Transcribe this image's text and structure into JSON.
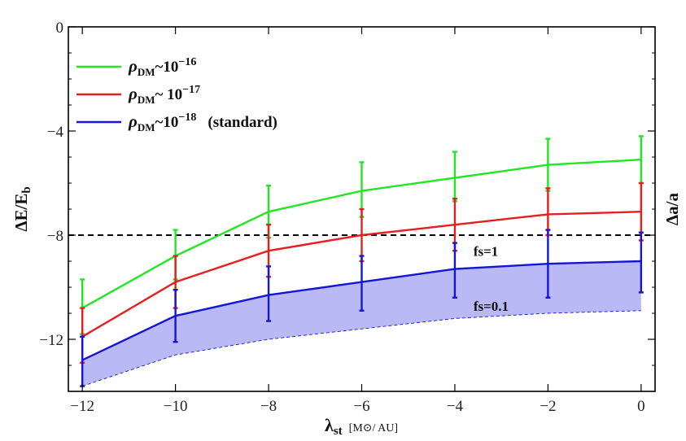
{
  "chart_data": {
    "type": "line",
    "xlabel": "λst [M⊙/ AU]",
    "xlabel_main": "λ",
    "xlabel_sub": "st",
    "xlabel_units": "[M⊙/ AU]",
    "ylabel": "ΔE/Eb",
    "ylabel_main": "ΔE/E",
    "ylabel_sub": "b",
    "y2label": "Δa/a",
    "xlim": [
      -12.3,
      0.3
    ],
    "ylim": [
      -14,
      0
    ],
    "x_ticks": [
      -12,
      -10,
      -8,
      -6,
      -4,
      -2,
      0
    ],
    "x_tick_labels": [
      "−12",
      "−10",
      "−8",
      "−6",
      "−4",
      "−2",
      "0"
    ],
    "y_ticks": [
      0,
      -4,
      -8,
      -12
    ],
    "y_tick_labels": [
      "0",
      "−4",
      "−8",
      "−12"
    ],
    "x": [
      -12,
      -10,
      -8,
      -6,
      -4,
      -2,
      0
    ],
    "series": [
      {
        "name": "ρDM~10−16",
        "legend_main": "ρ",
        "legend_sub": "DM",
        "legend_rest": "~10",
        "legend_sup": "−16",
        "legend_suffix": "",
        "color": "#22e622",
        "values": [
          -10.8,
          -8.8,
          -7.1,
          -6.3,
          -5.8,
          -5.3,
          -5.1
        ],
        "err_low": [
          -11.8,
          -9.7,
          -8.1,
          -7.3,
          -6.7,
          -6.3,
          -6.0
        ],
        "err_high": [
          -9.7,
          -7.8,
          -6.1,
          -5.2,
          -4.8,
          -4.3,
          -4.2
        ]
      },
      {
        "name": "ρDM~ 10−17",
        "legend_main": "ρ",
        "legend_sub": "DM",
        "legend_rest": "~ 10",
        "legend_sup": "−17",
        "legend_suffix": "",
        "color": "#e61e1e",
        "values": [
          -11.9,
          -9.8,
          -8.6,
          -8.0,
          -7.6,
          -7.2,
          -7.1
        ],
        "err_low": [
          -12.9,
          -10.8,
          -9.6,
          -9.0,
          -8.6,
          -8.0,
          -8.2
        ],
        "err_high": [
          -10.8,
          -8.8,
          -7.6,
          -7.0,
          -6.6,
          -6.2,
          -6.0
        ]
      },
      {
        "name": "ρDM~10−18 (standard)",
        "legend_main": "ρ",
        "legend_sub": "DM",
        "legend_rest": "~10",
        "legend_sup": "−18",
        "legend_suffix": "(standard)",
        "color": "#1515d6",
        "values": [
          -12.8,
          -11.1,
          -10.3,
          -9.8,
          -9.3,
          -9.1,
          -9.0
        ],
        "err_low": [
          -13.8,
          -12.1,
          -11.3,
          -10.9,
          -10.4,
          -10.4,
          -10.2
        ],
        "err_high": [
          -11.9,
          -10.1,
          -9.2,
          -8.8,
          -8.3,
          -7.8,
          -7.9
        ]
      }
    ],
    "lower_band": {
      "color": "#b9b9f5",
      "edge_color": "#1515d6",
      "values": [
        -13.8,
        -12.6,
        -12.0,
        -11.6,
        -11.2,
        -11.0,
        -10.9
      ]
    },
    "reference_line": {
      "y": -8,
      "style": "dashed",
      "color": "#000000"
    },
    "annotations": [
      {
        "text": "fs=1",
        "x": -3.6,
        "y": -8.8
      },
      {
        "text": "fs=0.1",
        "x": -3.6,
        "y": -10.9
      }
    ],
    "legend_position": "top-left",
    "grid": false
  }
}
